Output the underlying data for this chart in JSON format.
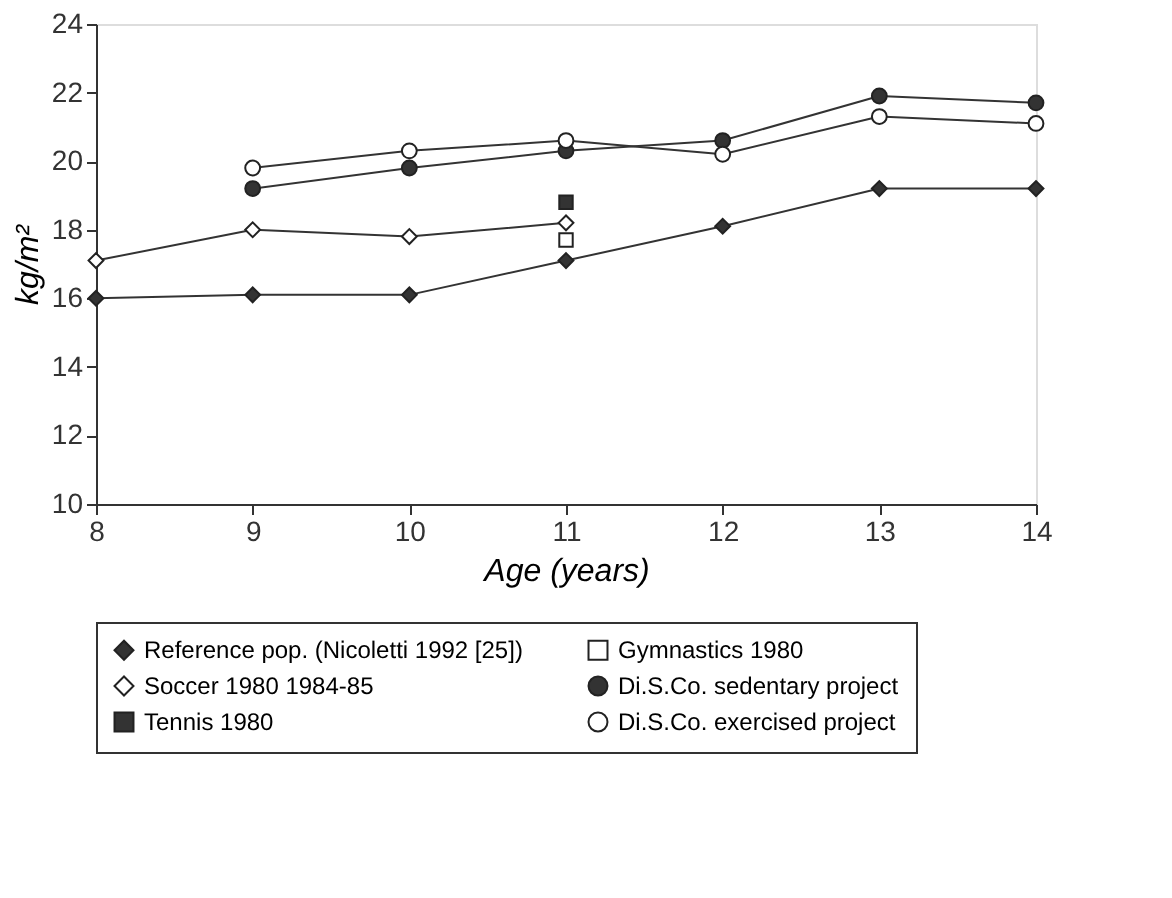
{
  "chart_data": {
    "type": "line",
    "xlabel": "Age (years)",
    "ylabel": "kg/m²",
    "x": [
      8,
      9,
      10,
      11,
      12,
      13,
      14
    ],
    "series": [
      {
        "name": "Reference pop. (Nicoletti 1992 [25])",
        "color": "#333333",
        "marker": "diamond",
        "values": [
          16,
          16.1,
          16.1,
          17.1,
          18.1,
          19.2,
          19.2
        ]
      },
      {
        "name": "Soccer 1980 1984-85",
        "color": "#ffffff",
        "marker": "diamond",
        "values": [
          17.1,
          18,
          17.8,
          18.2,
          null,
          null,
          null
        ]
      },
      {
        "name": "Tennis 1980",
        "type": "scatter",
        "color": "#333333",
        "marker": "square",
        "values": [
          null,
          null,
          null,
          18.8,
          null,
          null,
          null
        ]
      },
      {
        "name": "Gymnastics 1980",
        "type": "scatter",
        "color": "#ffffff",
        "marker": "square",
        "values": [
          null,
          null,
          null,
          17.7,
          null,
          null,
          null
        ]
      },
      {
        "name": "Di.S.Co. sedentary project",
        "color": "#333333",
        "marker": "circle",
        "values": [
          null,
          19.2,
          19.8,
          20.3,
          20.6,
          21.9,
          21.7
        ]
      },
      {
        "name": "Di.S.Co. exercised project",
        "color": "#ffffff",
        "marker": "circle",
        "values": [
          null,
          19.8,
          20.3,
          20.6,
          20.2,
          21.3,
          21.1
        ]
      }
    ],
    "xlim": [
      8,
      14
    ],
    "xticks": [
      8,
      9,
      10,
      11,
      12,
      13,
      14
    ],
    "ylim": [
      10,
      24
    ],
    "yticks": [
      10,
      12,
      14,
      16,
      18,
      20,
      22,
      24
    ],
    "grid": false,
    "legend": "bottom"
  }
}
